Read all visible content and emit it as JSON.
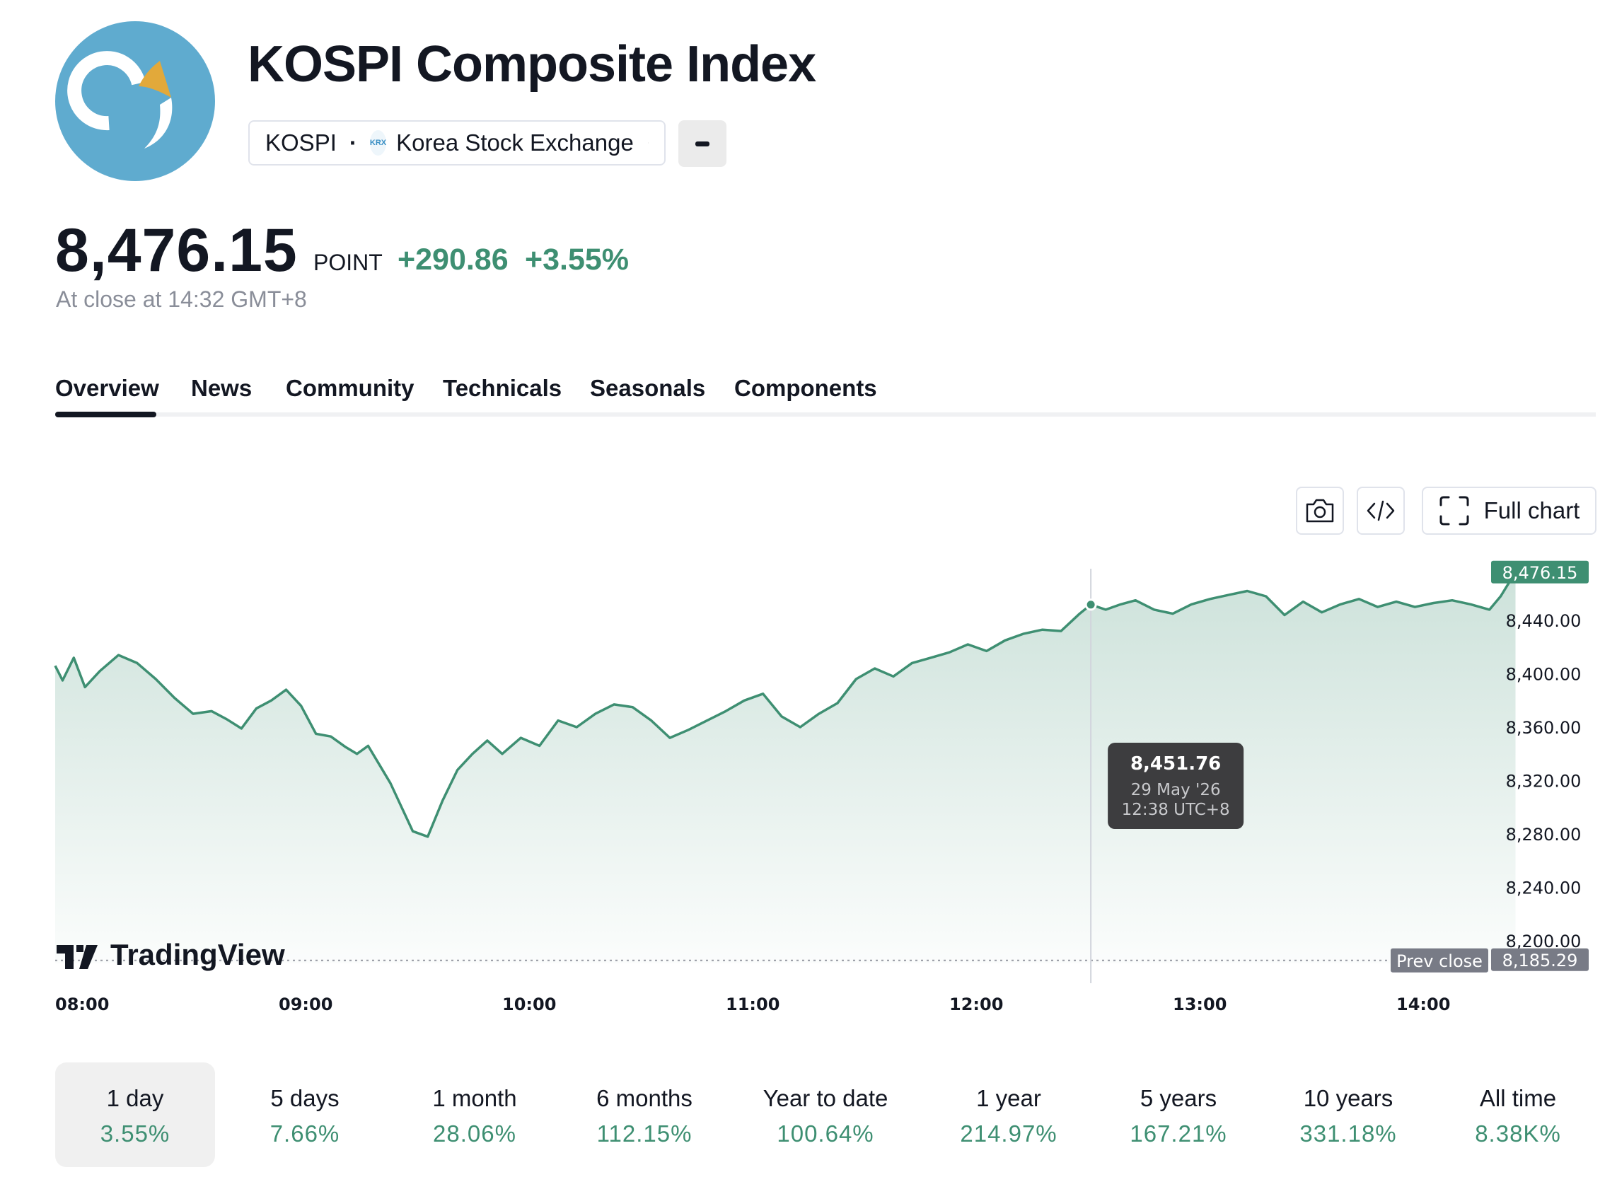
{
  "header": {
    "title": "KOSPI Composite Index",
    "symbol": "KOSPI",
    "exchange_badge": "KRX",
    "exchange": "Korea Stock Exchange",
    "logo_icon": "kospi-logo-icon"
  },
  "quote": {
    "price": "8,476.15",
    "unit": "POINT",
    "change": "+290.86",
    "change_pct": "+3.55%",
    "close_note": "At close at 14:32 GMT+8",
    "up_color": "#3e8f72"
  },
  "tabs": [
    {
      "label": "Overview",
      "active": true
    },
    {
      "label": "News"
    },
    {
      "label": "Community"
    },
    {
      "label": "Technicals"
    },
    {
      "label": "Seasonals"
    },
    {
      "label": "Components"
    }
  ],
  "tools": {
    "camera_icon": "camera-icon",
    "embed_icon": "code-embed-icon",
    "full_chart_label": "Full chart"
  },
  "chart_data": {
    "type": "area",
    "series_color": "#3e8f72",
    "x_ticks": [
      "08:00",
      "09:00",
      "10:00",
      "11:00",
      "12:00",
      "13:00",
      "14:00"
    ],
    "y_ticks": [
      "8,440.00",
      "8,400.00",
      "8,360.00",
      "8,320.00",
      "8,280.00",
      "8,240.00",
      "8,200.00"
    ],
    "ylim": [
      8185,
      8480
    ],
    "x_start": "08:00",
    "x_end": "14:32",
    "points": [
      [
        "08:00",
        8406
      ],
      [
        "08:02",
        8395
      ],
      [
        "08:05",
        8412
      ],
      [
        "08:08",
        8390
      ],
      [
        "08:12",
        8402
      ],
      [
        "08:17",
        8414
      ],
      [
        "08:22",
        8408
      ],
      [
        "08:27",
        8396
      ],
      [
        "08:32",
        8382
      ],
      [
        "08:37",
        8370
      ],
      [
        "08:42",
        8372
      ],
      [
        "08:46",
        8366
      ],
      [
        "08:50",
        8359
      ],
      [
        "08:54",
        8374
      ],
      [
        "08:58",
        8380
      ],
      [
        "09:02",
        8388
      ],
      [
        "09:06",
        8376
      ],
      [
        "09:10",
        8355
      ],
      [
        "09:14",
        8353
      ],
      [
        "09:18",
        8345
      ],
      [
        "09:21",
        8340
      ],
      [
        "09:24",
        8346
      ],
      [
        "09:27",
        8332
      ],
      [
        "09:30",
        8318
      ],
      [
        "09:33",
        8300
      ],
      [
        "09:36",
        8282
      ],
      [
        "09:40",
        8278
      ],
      [
        "09:44",
        8305
      ],
      [
        "09:48",
        8328
      ],
      [
        "09:52",
        8340
      ],
      [
        "09:56",
        8350
      ],
      [
        "10:00",
        8340
      ],
      [
        "10:05",
        8352
      ],
      [
        "10:10",
        8346
      ],
      [
        "10:15",
        8365
      ],
      [
        "10:20",
        8360
      ],
      [
        "10:25",
        8370
      ],
      [
        "10:30",
        8377
      ],
      [
        "10:35",
        8375
      ],
      [
        "10:40",
        8365
      ],
      [
        "10:45",
        8352
      ],
      [
        "10:50",
        8358
      ],
      [
        "10:55",
        8365
      ],
      [
        "11:00",
        8372
      ],
      [
        "11:05",
        8380
      ],
      [
        "11:10",
        8385
      ],
      [
        "11:15",
        8368
      ],
      [
        "11:20",
        8360
      ],
      [
        "11:25",
        8370
      ],
      [
        "11:30",
        8378
      ],
      [
        "11:35",
        8396
      ],
      [
        "11:40",
        8404
      ],
      [
        "11:45",
        8398
      ],
      [
        "11:50",
        8408
      ],
      [
        "11:55",
        8412
      ],
      [
        "12:00",
        8416
      ],
      [
        "12:05",
        8422
      ],
      [
        "12:10",
        8417
      ],
      [
        "12:15",
        8425
      ],
      [
        "12:20",
        8430
      ],
      [
        "12:25",
        8433
      ],
      [
        "12:30",
        8432
      ],
      [
        "12:35",
        8445
      ],
      [
        "12:38",
        8451.76
      ],
      [
        "12:42",
        8448
      ],
      [
        "12:46",
        8452
      ],
      [
        "12:50",
        8455
      ],
      [
        "12:55",
        8448
      ],
      [
        "13:00",
        8445
      ],
      [
        "13:05",
        8452
      ],
      [
        "13:10",
        8456
      ],
      [
        "13:15",
        8459
      ],
      [
        "13:20",
        8462
      ],
      [
        "13:25",
        8458
      ],
      [
        "13:30",
        8444
      ],
      [
        "13:35",
        8454
      ],
      [
        "13:40",
        8446
      ],
      [
        "13:45",
        8452
      ],
      [
        "13:50",
        8456
      ],
      [
        "13:55",
        8450
      ],
      [
        "14:00",
        8454
      ],
      [
        "14:05",
        8450
      ],
      [
        "14:10",
        8453
      ],
      [
        "14:15",
        8455
      ],
      [
        "14:20",
        8452
      ],
      [
        "14:25",
        8448
      ],
      [
        "14:28",
        8458
      ],
      [
        "14:32",
        8476.15
      ]
    ],
    "last_value_label": "8,476.15",
    "prev_close_label": "Prev close",
    "prev_close_value": "8,185.29",
    "prev_close": 8185.29,
    "tooltip": {
      "value": "8,451.76",
      "date": "29 May '26",
      "time": "12:38 UTC+8",
      "at_time": "12:38",
      "at_value": 8451.76
    },
    "watermark": "TradingView"
  },
  "ranges": [
    {
      "label": "1 day",
      "value": "3.55%",
      "active": true
    },
    {
      "label": "5 days",
      "value": "7.66%"
    },
    {
      "label": "1 month",
      "value": "28.06%"
    },
    {
      "label": "6 months",
      "value": "112.15%"
    },
    {
      "label": "Year to date",
      "value": "100.64%"
    },
    {
      "label": "1 year",
      "value": "214.97%"
    },
    {
      "label": "5 years",
      "value": "167.21%"
    },
    {
      "label": "10 years",
      "value": "331.18%"
    },
    {
      "label": "All time",
      "value": "8.38K%"
    }
  ]
}
